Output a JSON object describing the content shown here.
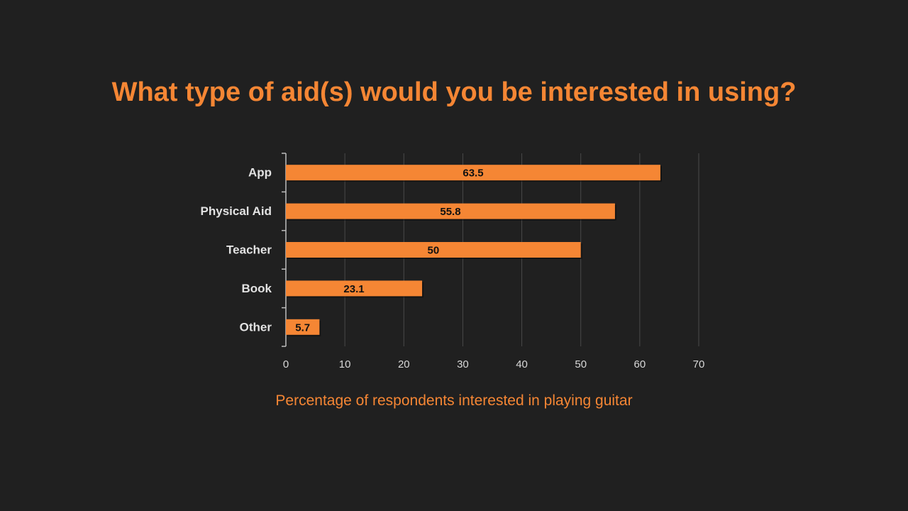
{
  "slide": {
    "title": "What type of aid(s) would you be interested in using?"
  },
  "chart_data": {
    "type": "bar",
    "orientation": "horizontal",
    "title": "",
    "xlabel": "Percentage of respondents interested in playing guitar",
    "ylabel": "",
    "categories": [
      "App",
      "Physical Aid",
      "Teacher",
      "Book",
      "Other"
    ],
    "values": [
      63.5,
      55.8,
      50,
      23.1,
      5.7
    ],
    "data_labels": [
      "63.5",
      "55.8",
      "50",
      "23.1",
      "5.7"
    ],
    "xlim": [
      0,
      70
    ],
    "xticks": [
      0,
      10,
      20,
      30,
      40,
      50,
      60,
      70
    ],
    "grid": true,
    "legend": "none",
    "colors": {
      "bar": "#f58634",
      "grid": "#4a4a4a",
      "axis": "#bdbdbd",
      "title": "#f58634",
      "axis_title": "#f58634"
    }
  }
}
